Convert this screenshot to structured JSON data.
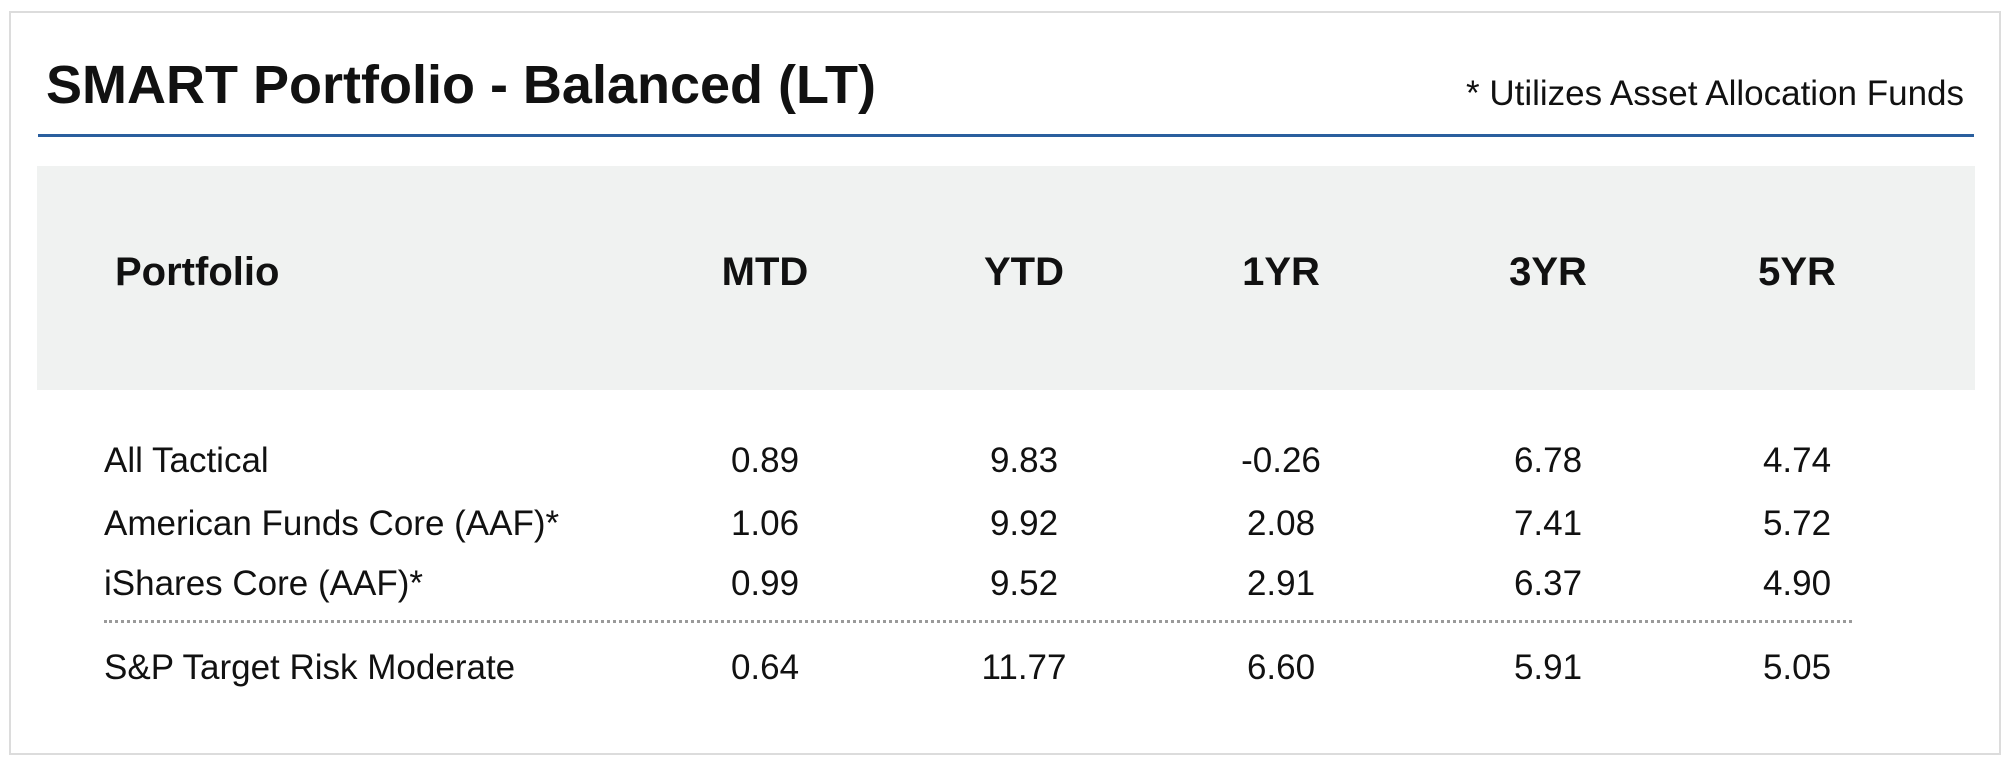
{
  "title": "SMART Portfolio - Balanced (LT)",
  "note": "* Utilizes Asset Allocation Funds",
  "colors": {
    "rule": "#2a5f9e",
    "header_band": "#f0f2f1",
    "frame_border": "#dcdcdc",
    "separator": "#9a9a9a"
  },
  "table": {
    "headers": [
      "Portfolio",
      "MTD",
      "YTD",
      "1YR",
      "3YR",
      "5YR"
    ],
    "rows": [
      [
        "All Tactical",
        "0.89",
        "9.83",
        "-0.26",
        "6.78",
        "4.74"
      ],
      [
        "American Funds Core (AAF)*",
        "1.06",
        "9.92",
        "2.08",
        "7.41",
        "5.72"
      ],
      [
        "iShares Core (AAF)*",
        "0.99",
        "9.52",
        "2.91",
        "6.37",
        "4.90"
      ]
    ],
    "benchmark": [
      "S&P Target Risk Moderate",
      "0.64",
      "11.77",
      "6.60",
      "5.91",
      "5.05"
    ]
  }
}
